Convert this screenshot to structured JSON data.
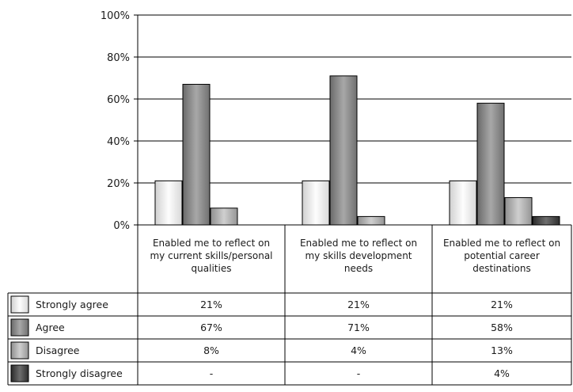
{
  "chart_data": {
    "type": "bar",
    "categories": [
      [
        "Enabled me to reflect on",
        "my current skills/personal",
        "qualities"
      ],
      [
        "Enabled me to reflect on",
        "my skills development",
        "needs"
      ],
      [
        "Enabled me to reflect on",
        "potential career",
        "destinations"
      ]
    ],
    "series": [
      {
        "name": "Strongly agree",
        "values": [
          21,
          21,
          21
        ],
        "labels": [
          "21%",
          "21%",
          "21%"
        ],
        "color": "#efefef"
      },
      {
        "name": "Agree",
        "values": [
          67,
          71,
          58
        ],
        "labels": [
          "67%",
          "71%",
          "58%"
        ],
        "color": "#8c8c8c"
      },
      {
        "name": "Disagree",
        "values": [
          8,
          4,
          13
        ],
        "labels": [
          "8%",
          "4%",
          "13%"
        ],
        "color": "#b3b3b3"
      },
      {
        "name": "Strongly disagree",
        "values": [
          0,
          0,
          4
        ],
        "labels": [
          "-",
          "-",
          "4%"
        ],
        "color": "#4a4a4a"
      }
    ],
    "yticks": [
      "0%",
      "20%",
      "40%",
      "60%",
      "80%",
      "100%"
    ],
    "ylim": [
      0,
      100
    ],
    "grid": true,
    "legend": "data-table"
  }
}
